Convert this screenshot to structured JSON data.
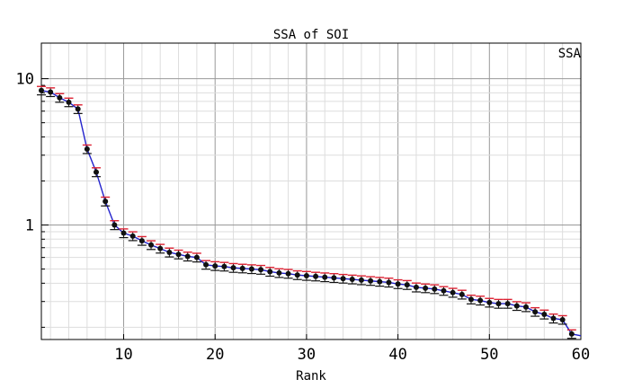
{
  "chart_data": {
    "type": "line",
    "title": "SSA of SOI",
    "xlabel": "Rank",
    "ylabel": "",
    "legend": {
      "label": "SSA",
      "placement": "top-right"
    },
    "xlim": [
      1,
      60
    ],
    "ylim": [
      0.165,
      17.5
    ],
    "y_scale": "log",
    "grid": true,
    "x_ticks": [
      10,
      20,
      30,
      40,
      50,
      60
    ],
    "y_ticks": [
      {
        "value": 1,
        "label": "1"
      },
      {
        "value": 10,
        "label": "10"
      }
    ],
    "colors": {
      "line": "#2222cc",
      "marker": "#111111",
      "errorbar": "#dd2233",
      "errorbar_stem": "#111111",
      "grid_major": "#999999",
      "grid_minor": "#dddddd"
    },
    "series": [
      {
        "x": [
          1,
          2,
          3,
          4,
          5,
          6,
          7,
          8,
          9,
          10,
          11,
          12,
          13,
          14,
          15,
          16,
          17,
          18,
          19,
          20,
          21,
          22,
          23,
          24,
          25,
          26,
          27,
          28,
          29,
          30,
          31,
          32,
          33,
          34,
          35,
          36,
          37,
          38,
          39,
          40,
          41,
          42,
          43,
          44,
          45,
          46,
          47,
          48,
          49,
          50,
          51,
          52,
          53,
          54,
          55,
          56,
          57,
          58,
          59,
          60
        ],
        "y": [
          8.3,
          8.1,
          7.4,
          6.9,
          6.2,
          3.3,
          2.3,
          1.45,
          1.0,
          0.88,
          0.84,
          0.78,
          0.73,
          0.69,
          0.65,
          0.63,
          0.61,
          0.6,
          0.535,
          0.525,
          0.52,
          0.51,
          0.505,
          0.5,
          0.495,
          0.48,
          0.47,
          0.465,
          0.455,
          0.45,
          0.445,
          0.44,
          0.435,
          0.43,
          0.425,
          0.42,
          0.415,
          0.41,
          0.405,
          0.395,
          0.39,
          0.375,
          0.37,
          0.365,
          0.355,
          0.345,
          0.335,
          0.31,
          0.305,
          0.295,
          0.29,
          0.29,
          0.28,
          0.275,
          0.255,
          0.245,
          0.23,
          0.225,
          0.18,
          0.175
        ],
        "yerr": [
          0.55,
          0.55,
          0.5,
          0.46,
          0.42,
          0.22,
          0.16,
          0.1,
          0.07,
          0.06,
          0.058,
          0.053,
          0.05,
          0.047,
          0.045,
          0.043,
          0.042,
          0.041,
          0.036,
          0.036,
          0.035,
          0.035,
          0.034,
          0.034,
          0.034,
          0.033,
          0.032,
          0.032,
          0.031,
          0.031,
          0.03,
          0.03,
          0.03,
          0.029,
          0.029,
          0.029,
          0.028,
          0.028,
          0.028,
          0.027,
          0.027,
          0.026,
          0.025,
          0.025,
          0.024,
          0.024,
          0.023,
          0.021,
          0.021,
          0.02,
          0.02,
          0.02,
          0.019,
          0.019,
          0.017,
          0.017,
          0.016,
          0.015,
          0.012,
          0
        ]
      }
    ]
  }
}
